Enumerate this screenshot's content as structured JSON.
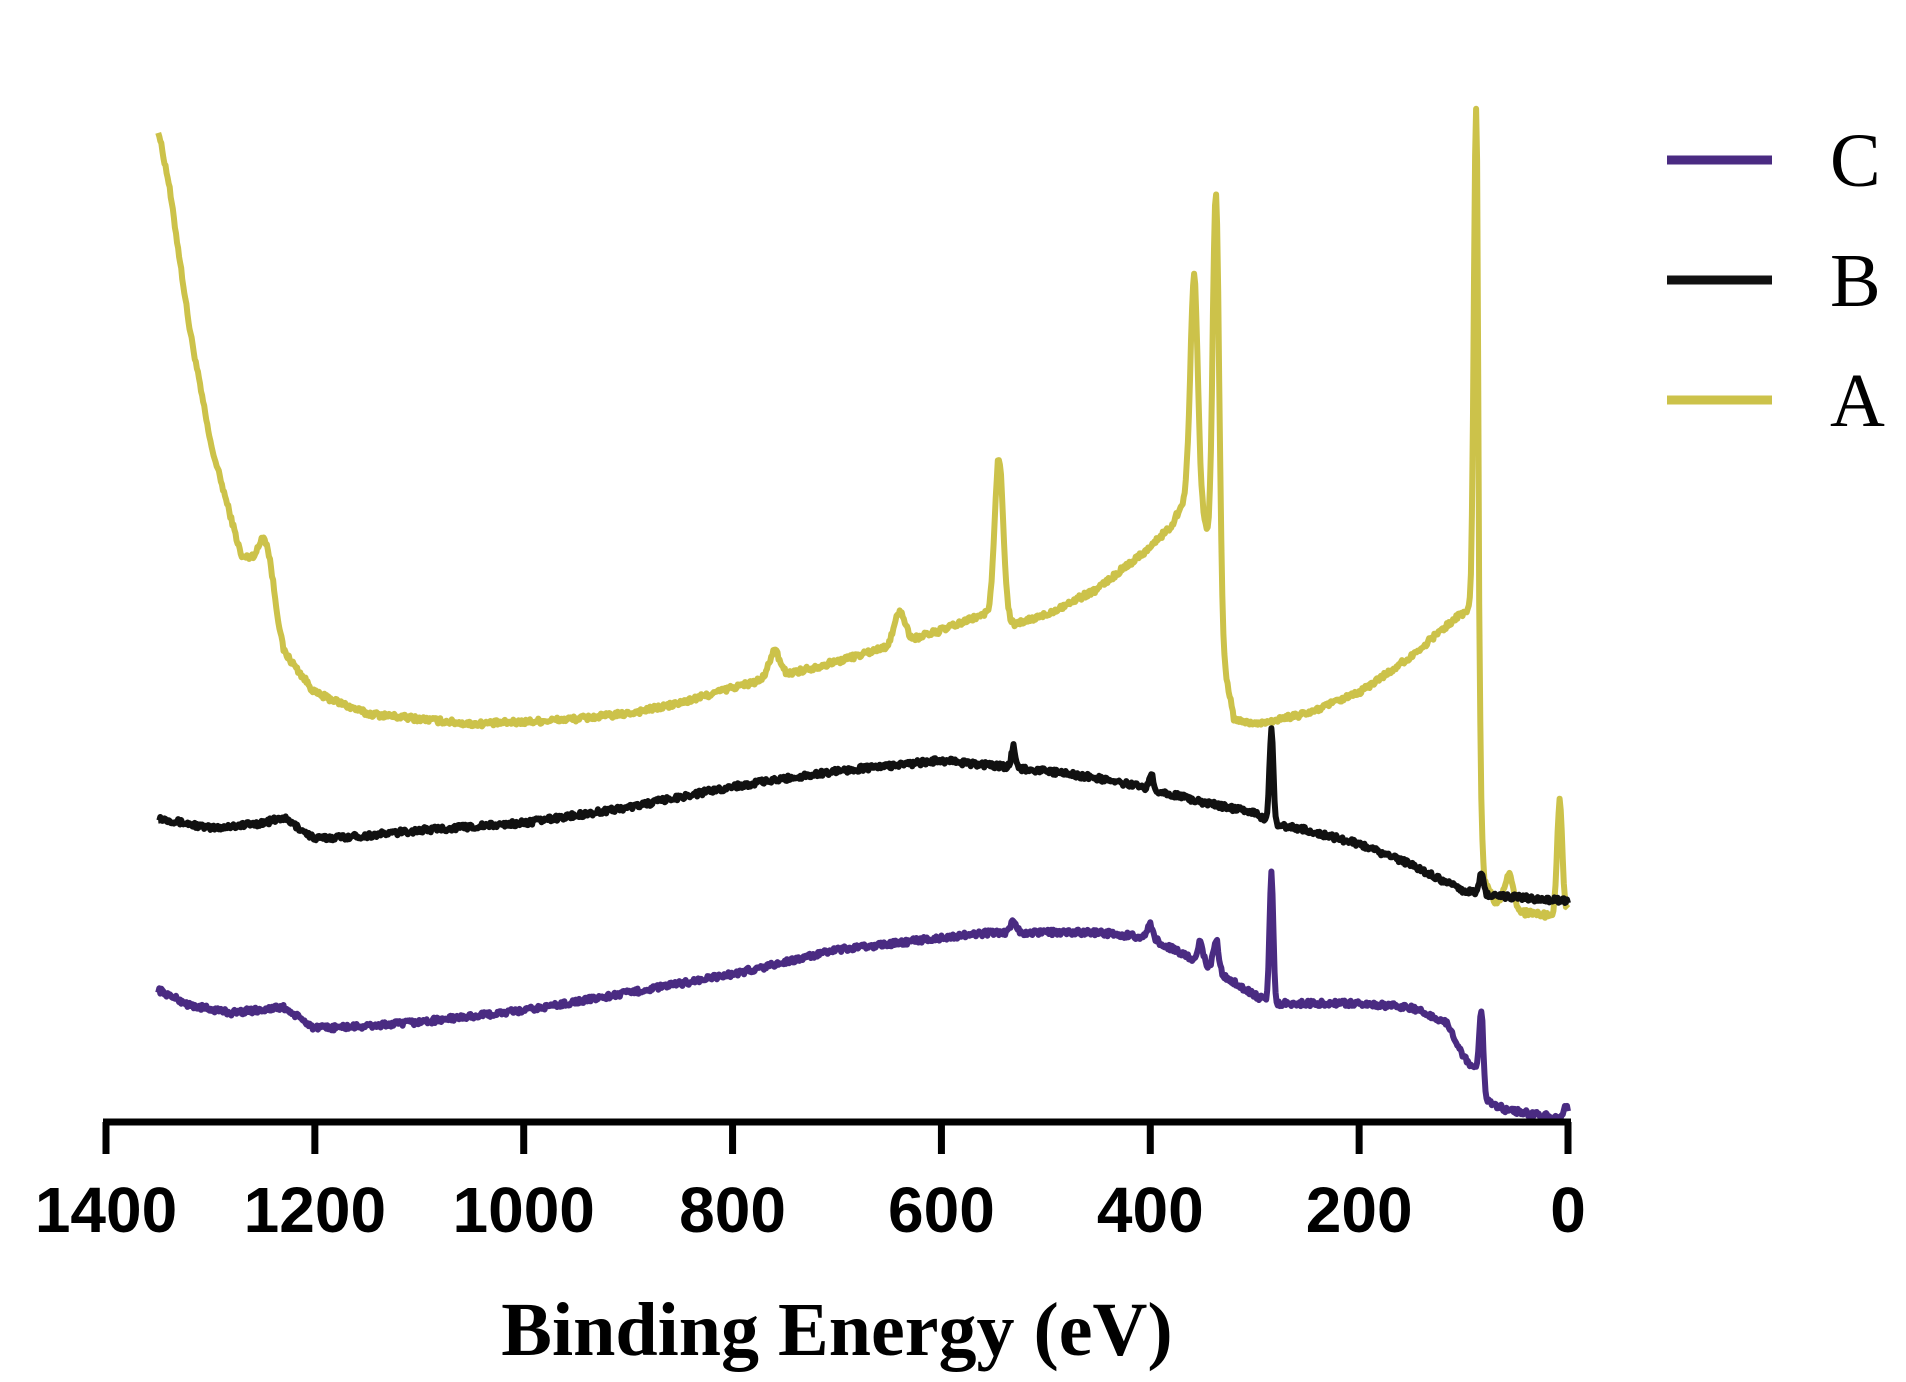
{
  "chart_data": {
    "type": "line",
    "title": "",
    "xlabel": "Binding Energy (eV)",
    "ylabel": "",
    "xlim": [
      1400,
      0
    ],
    "x_reversed": true,
    "ylim": [
      0,
      100
    ],
    "grid": false,
    "y_axis_visible": false,
    "x_ticks": [
      {
        "value": 1400,
        "label": "1400"
      },
      {
        "value": 1200,
        "label": "1200"
      },
      {
        "value": 1000,
        "label": "1000"
      },
      {
        "value": 800,
        "label": "800"
      },
      {
        "value": 600,
        "label": "600"
      },
      {
        "value": 400,
        "label": "400"
      },
      {
        "value": 200,
        "label": "200"
      },
      {
        "value": 0,
        "label": "0"
      }
    ],
    "legend": {
      "position": "top-right",
      "entries": [
        {
          "series": "C",
          "label": "C"
        },
        {
          "series": "B",
          "label": "B"
        },
        {
          "series": "A",
          "label": "A"
        }
      ]
    },
    "series": [
      {
        "name": "A",
        "color": "#ccc24a",
        "baseline": [
          [
            1350,
            95
          ],
          [
            1340,
            90
          ],
          [
            1320,
            76
          ],
          [
            1300,
            65
          ],
          [
            1270,
            54
          ],
          [
            1250,
            54
          ],
          [
            1230,
            45
          ],
          [
            1200,
            41
          ],
          [
            1150,
            39
          ],
          [
            1100,
            38.5
          ],
          [
            1050,
            38
          ],
          [
            1000,
            38.2
          ],
          [
            950,
            38.5
          ],
          [
            900,
            39
          ],
          [
            850,
            40
          ],
          [
            800,
            41.5
          ],
          [
            760,
            42.5
          ],
          [
            700,
            44
          ],
          [
            650,
            45.5
          ],
          [
            600,
            47
          ],
          [
            560,
            48.5
          ],
          [
            540,
            48.5
          ],
          [
            530,
            47.5
          ],
          [
            500,
            48.5
          ],
          [
            450,
            51
          ],
          [
            400,
            55
          ],
          [
            380,
            57
          ],
          [
            365,
            60
          ],
          [
            350,
            58
          ],
          [
            340,
            54
          ],
          [
            330,
            44
          ],
          [
            320,
            38.5
          ],
          [
            300,
            38
          ],
          [
            250,
            39
          ],
          [
            200,
            41
          ],
          [
            150,
            44.5
          ],
          [
            110,
            48
          ],
          [
            95,
            49
          ],
          [
            87,
            48
          ],
          [
            85,
            30
          ],
          [
            80,
            23
          ],
          [
            70,
            21
          ],
          [
            60,
            21
          ],
          [
            50,
            20
          ],
          [
            10,
            19.5
          ],
          [
            0,
            20
          ]
        ],
        "peaks": [
          {
            "x": 1245,
            "height": 3,
            "width": 6
          },
          {
            "x": 760,
            "height": 2.5,
            "width": 5
          },
          {
            "x": 640,
            "height": 3,
            "width": 5
          },
          {
            "x": 545,
            "height": 15,
            "width": 4
          },
          {
            "x": 358,
            "height": 22,
            "width": 3.5
          },
          {
            "x": 337,
            "height": 38,
            "width": 3
          },
          {
            "x": 88,
            "height": 49,
            "width": 2.2
          },
          {
            "x": 56,
            "height": 3,
            "width": 4
          },
          {
            "x": 8,
            "height": 11,
            "width": 2.5
          }
        ]
      },
      {
        "name": "B",
        "color": "#111111",
        "baseline": [
          [
            1350,
            29
          ],
          [
            1300,
            28
          ],
          [
            1250,
            28.5
          ],
          [
            1230,
            29
          ],
          [
            1200,
            27
          ],
          [
            1150,
            27.3
          ],
          [
            1100,
            27.8
          ],
          [
            1000,
            28.5
          ],
          [
            900,
            30
          ],
          [
            800,
            32
          ],
          [
            700,
            33.5
          ],
          [
            600,
            34.5
          ],
          [
            550,
            34
          ],
          [
            500,
            33.5
          ],
          [
            450,
            32.8
          ],
          [
            400,
            31.8
          ],
          [
            350,
            30.5
          ],
          [
            300,
            29.5
          ],
          [
            285,
            28.5
          ],
          [
            250,
            27.8
          ],
          [
            200,
            26.5
          ],
          [
            150,
            24.5
          ],
          [
            100,
            22
          ],
          [
            80,
            21.6
          ],
          [
            40,
            21.3
          ],
          [
            0,
            21
          ]
        ],
        "peaks": [
          {
            "x": 531,
            "height": 2,
            "width": 2
          },
          {
            "x": 399,
            "height": 1.5,
            "width": 2
          },
          {
            "x": 284,
            "height": 9,
            "width": 1.8
          },
          {
            "x": 83,
            "height": 2,
            "width": 2
          }
        ]
      },
      {
        "name": "C",
        "color": "#4a2b82",
        "baseline": [
          [
            1350,
            12.5
          ],
          [
            1320,
            11
          ],
          [
            1280,
            10.3
          ],
          [
            1230,
            10.8
          ],
          [
            1200,
            8.8
          ],
          [
            1150,
            9
          ],
          [
            1100,
            9.4
          ],
          [
            1000,
            10.5
          ],
          [
            900,
            12.2
          ],
          [
            800,
            14
          ],
          [
            700,
            16.3
          ],
          [
            600,
            17.5
          ],
          [
            550,
            18
          ],
          [
            500,
            18
          ],
          [
            450,
            18
          ],
          [
            400,
            17.5
          ],
          [
            370,
            16
          ],
          [
            340,
            14.5
          ],
          [
            300,
            12
          ],
          [
            285,
            11.2
          ],
          [
            250,
            11.2
          ],
          [
            200,
            11.2
          ],
          [
            150,
            10.8
          ],
          [
            115,
            9.3
          ],
          [
            105,
            7
          ],
          [
            95,
            5.3
          ],
          [
            90,
            5.2
          ],
          [
            80,
            2
          ],
          [
            60,
            1
          ],
          [
            30,
            0.5
          ],
          [
            10,
            0.3
          ],
          [
            0,
            0.5
          ]
        ],
        "peaks": [
          {
            "x": 531,
            "height": 1.3,
            "width": 2.5
          },
          {
            "x": 400,
            "height": 1.2,
            "width": 2.5
          },
          {
            "x": 352,
            "height": 2,
            "width": 2.5
          },
          {
            "x": 337,
            "height": 3,
            "width": 2.5
          },
          {
            "x": 284,
            "height": 12.5,
            "width": 1.8
          },
          {
            "x": 83,
            "height": 7.5,
            "width": 2
          },
          {
            "x": 2,
            "height": 1,
            "width": 1.5
          }
        ]
      }
    ]
  }
}
